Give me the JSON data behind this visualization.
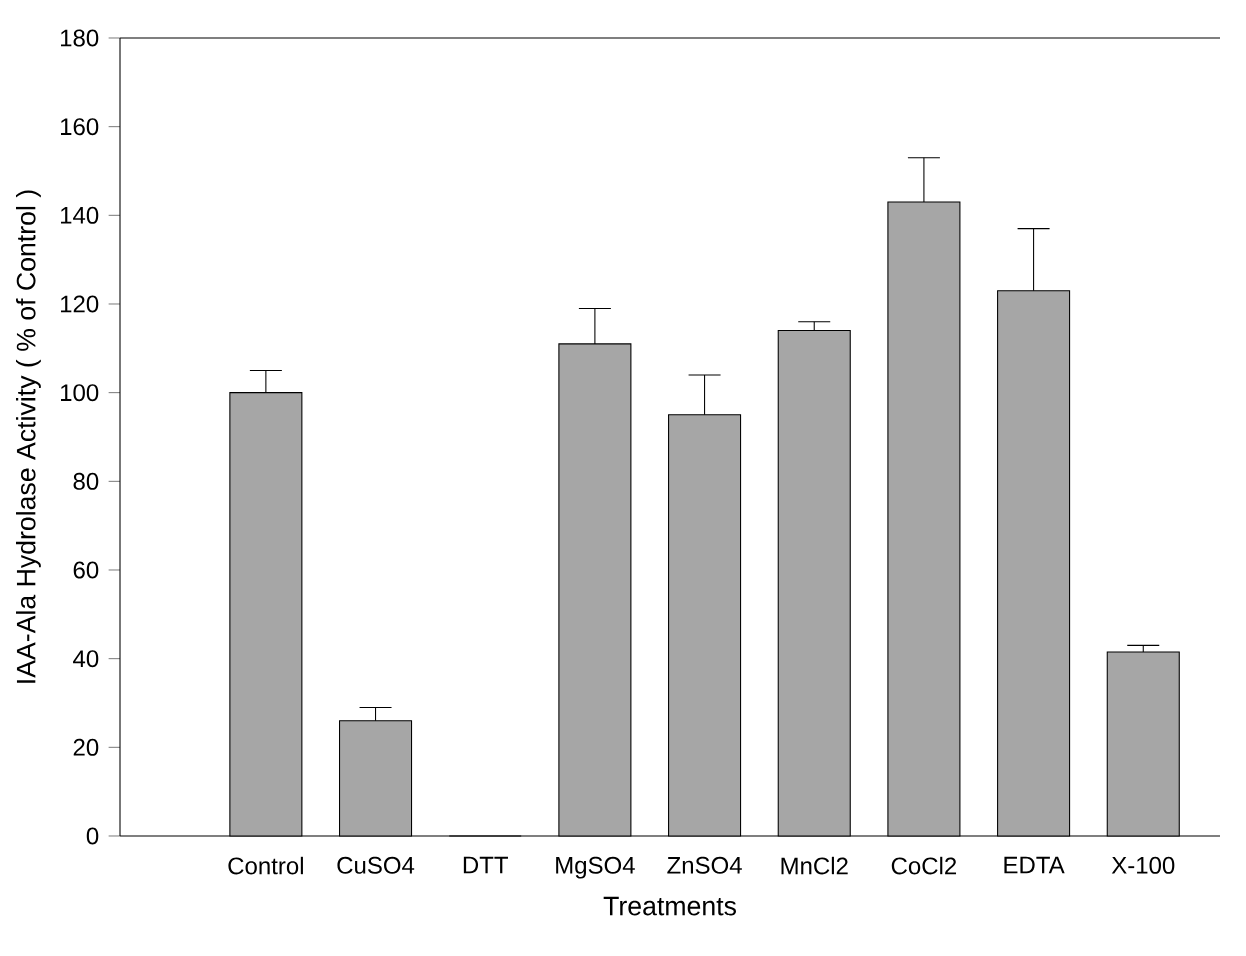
{
  "chart_data": {
    "type": "bar",
    "xlabel": "Treatments",
    "ylabel": "IAA-Ala Hydrolase Activity ( % of Control )",
    "categories": [
      "Control",
      "CuSO4",
      "DTT",
      "MgSO4",
      "ZnSO4",
      "MnCl2",
      "CoCl2",
      "EDTA",
      "X-100"
    ],
    "values": [
      100,
      26,
      0,
      111,
      95,
      114,
      143,
      123,
      41.5
    ],
    "errors": [
      [
        100,
        105
      ],
      [
        26,
        29
      ],
      null,
      [
        111,
        119
      ],
      [
        95,
        104
      ],
      [
        114,
        116
      ],
      [
        143,
        153
      ],
      [
        123,
        137
      ],
      [
        41.5,
        43
      ]
    ],
    "color": "#a6a6a6",
    "ylim": [
      0,
      180
    ],
    "yticks": [
      0,
      20,
      40,
      60,
      80,
      100,
      120,
      140,
      160,
      180
    ]
  }
}
